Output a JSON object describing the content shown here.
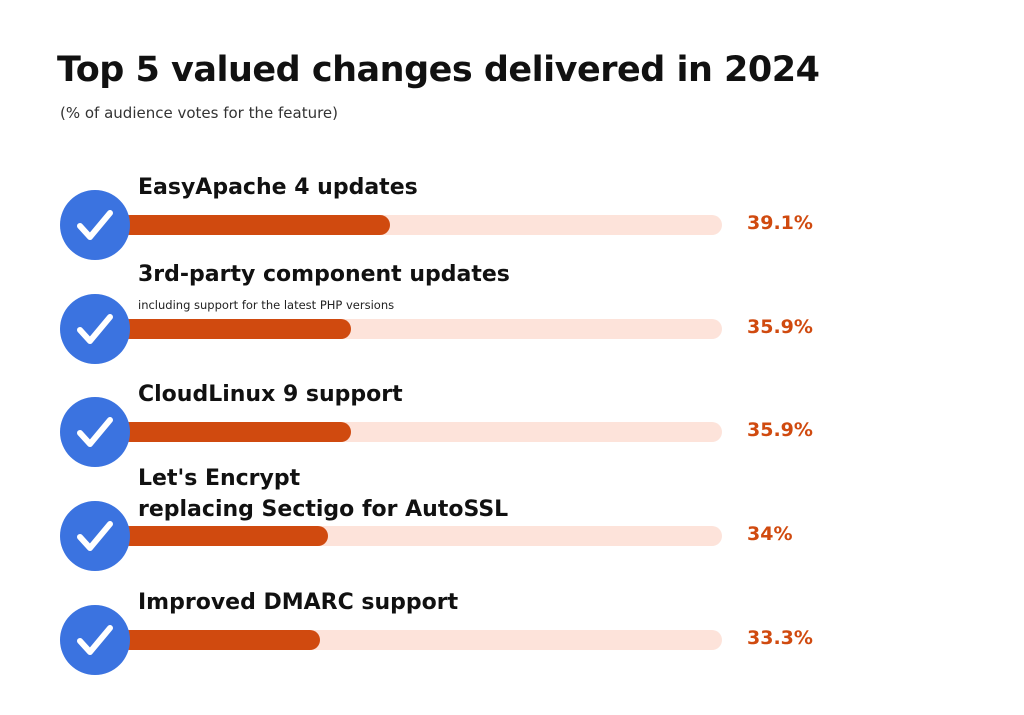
{
  "chart_data": {
    "type": "bar",
    "orientation": "horizontal",
    "title": "Top 5 valued changes delivered in 2024",
    "subtitle": "(% of audience votes for the feature)",
    "categories": [
      "EasyApache 4 updates",
      "3rd-party component updates",
      "CloudLinux 9 support",
      "Let's Encrypt replacing Sectigo for AutoSSL",
      "Improved DMARC support"
    ],
    "values": [
      39.1,
      35.9,
      35.9,
      34,
      33.3
    ],
    "items": [
      {
        "label": "EasyApache 4 updates",
        "note": "",
        "value": 39.1,
        "value_label": "39.1%"
      },
      {
        "label": "3rd-party component updates",
        "note": "including support for the latest PHP versions",
        "value": 35.9,
        "value_label": "35.9%"
      },
      {
        "label": "CloudLinux 9 support",
        "note": "",
        "value": 35.9,
        "value_label": "35.9%"
      },
      {
        "label": "Let's Encrypt\nreplacing Sectigo for AutoSSL",
        "note": "",
        "value": 34,
        "value_label": "34%"
      },
      {
        "label": "Improved DMARC support",
        "note": "",
        "value": 33.3,
        "value_label": "33.3%"
      }
    ],
    "xlabel": "",
    "ylabel": "",
    "grid": false
  },
  "colors": {
    "bar": "#d04a0f",
    "track": "#fde3da",
    "check_circle": "#3b73e0"
  },
  "icon": "check-circle-icon"
}
